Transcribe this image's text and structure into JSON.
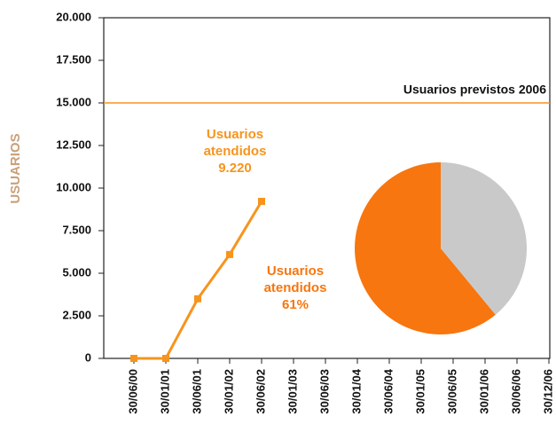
{
  "chart_data": [
    {
      "type": "line",
      "categories": [
        "30/06/00",
        "30/01/01",
        "30/06/01",
        "30/01/02",
        "30/06/02",
        "30/01/03",
        "30/06/03",
        "30/01/04",
        "30/06/04",
        "30/01/05",
        "30/06/05",
        "30/01/06",
        "30/06/06",
        "30/12/06"
      ],
      "y_label": "USUARIOS",
      "y_label_color": "#c8a07a",
      "series": [
        {
          "name": "Usuarios atendidos",
          "color": "#f7941d",
          "values": [
            0,
            0,
            3500,
            6100,
            9220,
            null,
            null,
            null,
            null,
            null,
            null,
            null,
            null,
            null
          ],
          "value_labels": [
            null,
            null,
            null,
            null,
            "9.220",
            null,
            null,
            null,
            null,
            null,
            null,
            null,
            null,
            null
          ]
        }
      ],
      "ylim": [
        0,
        20000
      ],
      "yticks": [
        0,
        {
          "value": 2500,
          "label": "2.500"
        },
        {
          "value": 5000,
          "label": "5.000"
        },
        {
          "value": 7500,
          "label": "7.500"
        },
        {
          "value": 10000,
          "label": "10.000"
        },
        {
          "value": 12500,
          "label": "12.500"
        },
        {
          "value": 15000,
          "label": "15.000"
        },
        {
          "value": 17500,
          "label": "17.500"
        },
        {
          "value": 20000,
          "label": "20.000"
        }
      ],
      "reference_line": {
        "value": 15000,
        "label": "Usuarios previstos 2006",
        "color": "#f7941d"
      }
    },
    {
      "type": "pie",
      "categories": [
        "Usuarios atendidos",
        null
      ],
      "values": [
        61,
        39
      ],
      "value_labels": [
        "61%",
        null
      ],
      "colors": [
        "#f7760f",
        "#c9c9c9"
      ]
    }
  ]
}
